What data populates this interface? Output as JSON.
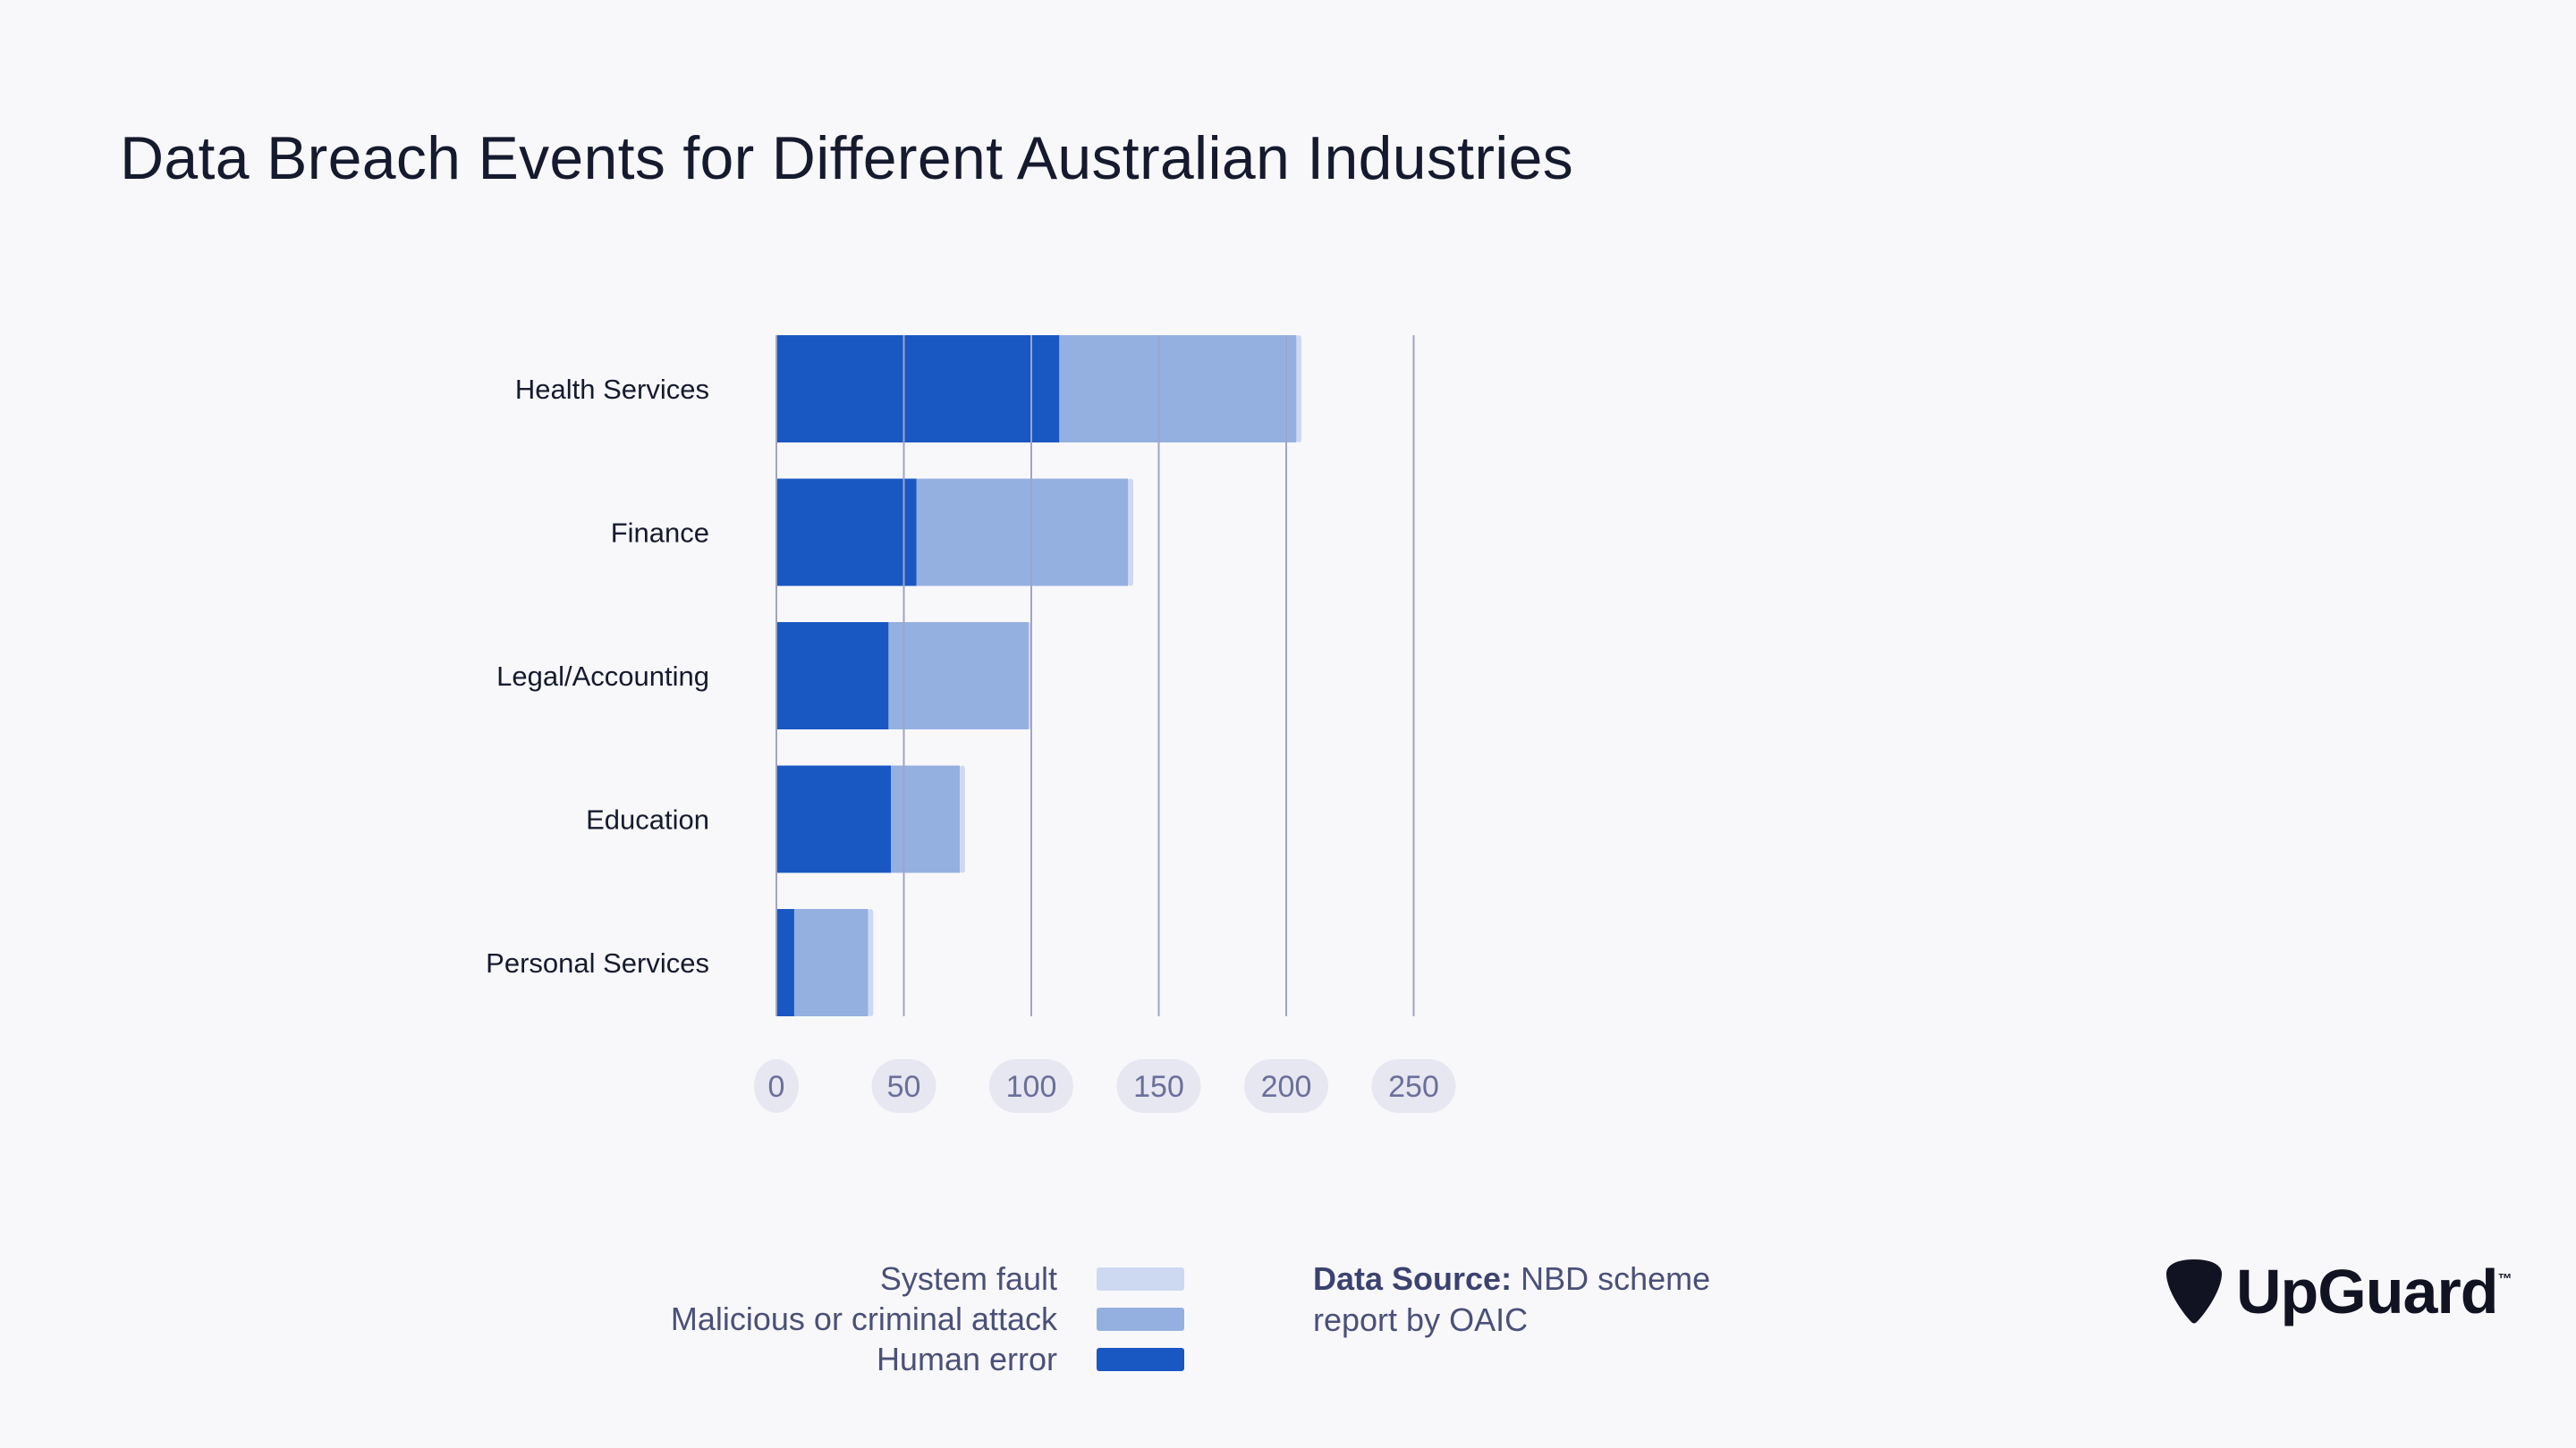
{
  "chart_data": {
    "type": "bar",
    "orientation": "horizontal",
    "stacked": true,
    "title": "Data Breach Events for Different Australian Industries",
    "categories": [
      "Health Services",
      "Finance",
      "Legal/Accounting",
      "Education",
      "Personal Services"
    ],
    "series": [
      {
        "name": "Human error",
        "values": [
          111,
          55,
          44,
          45,
          7
        ],
        "color": "#1957c2"
      },
      {
        "name": "Malicious or criminal attack",
        "values": [
          93,
          83,
          55,
          27,
          29
        ],
        "color": "#94b0e0"
      },
      {
        "name": "System fault",
        "values": [
          2,
          2,
          1,
          2,
          2
        ],
        "color": "#cdd9f0"
      }
    ],
    "xlim": [
      0,
      250
    ],
    "xticks": [
      "0",
      "50",
      "100",
      "150",
      "200",
      "250"
    ],
    "grid": true,
    "legend_position": "bottom"
  },
  "legend": {
    "items": [
      {
        "label": "System fault",
        "color": "#cdd9f0"
      },
      {
        "label": "Malicious or criminal attack",
        "color": "#94b0e0"
      },
      {
        "label": "Human error",
        "color": "#1957c2"
      }
    ]
  },
  "source": {
    "label": "Data Source:",
    "text": "NBD scheme report by OAIC"
  },
  "logo": {
    "icon": "guitar-pick-icon",
    "name": "UpGuard",
    "tm": "™"
  }
}
